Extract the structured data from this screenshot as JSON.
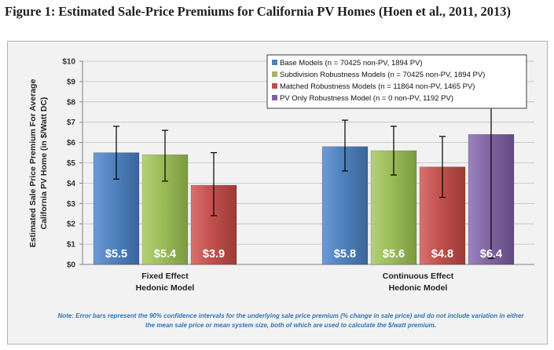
{
  "figure": {
    "title": "Figure 1: Estimated Sale-Price Premiums for California PV Homes (Hoen et al., 2011, 2013)",
    "note": "Note: Error bars represent the 90% confidence intervals for the underlying sale price premium (% change in sale price) and do not include variation in either the mean sale price or mean system size, both of which are used to calculate the $/watt premium."
  },
  "chart_data": {
    "type": "bar",
    "ylabel_lines": [
      "Estimated Sale Price Premium For Average",
      "California PV Home (in $/Watt DC)"
    ],
    "ylim": [
      0,
      10
    ],
    "yticks": [
      0,
      1,
      2,
      3,
      4,
      5,
      6,
      7,
      8,
      9,
      10
    ],
    "ytick_labels": [
      "$0",
      "$1",
      "$2",
      "$3",
      "$4",
      "$5",
      "$6",
      "$7",
      "$8",
      "$9",
      "$10"
    ],
    "grid": true,
    "legend_position": "top-right",
    "groups": [
      {
        "label_lines": [
          "Fixed Effect",
          "Hedonic Model"
        ],
        "bars": [
          {
            "series": 0,
            "value": 5.5,
            "label": "$5.5",
            "err_low": 4.2,
            "err_high": 6.8
          },
          {
            "series": 1,
            "value": 5.4,
            "label": "$5.4",
            "err_low": 4.1,
            "err_high": 6.6
          },
          {
            "series": 2,
            "value": 3.9,
            "label": "$3.9",
            "err_low": 2.4,
            "err_high": 5.5
          }
        ]
      },
      {
        "label_lines": [
          "Continuous Effect",
          "Hedonic Model"
        ],
        "bars": [
          {
            "series": 0,
            "value": 5.8,
            "label": "$5.8",
            "err_low": 4.6,
            "err_high": 7.1
          },
          {
            "series": 1,
            "value": 5.6,
            "label": "$5.6",
            "err_low": 4.4,
            "err_high": 6.8
          },
          {
            "series": 2,
            "value": 4.8,
            "label": "$4.8",
            "err_low": 3.3,
            "err_high": 6.3
          },
          {
            "series": 3,
            "value": 6.4,
            "label": "$6.4",
            "err_low": 0.3,
            "err_high": 10
          }
        ]
      }
    ],
    "series": [
      {
        "name": "Base Models (n = 70425 non-PV, 1894 PV)",
        "color": "#4f81bd"
      },
      {
        "name": "Subdivision Robustness Models (n = 70425 non-PV, 1894 PV)",
        "color": "#9bbb59"
      },
      {
        "name": "Matched Robustness Models (n = 11864 non-PV, 1465 PV)",
        "color": "#c0504d"
      },
      {
        "name": "PV Only Robustness Model (n = 0 non-PV, 1192 PV)",
        "color": "#8064a2"
      }
    ]
  }
}
